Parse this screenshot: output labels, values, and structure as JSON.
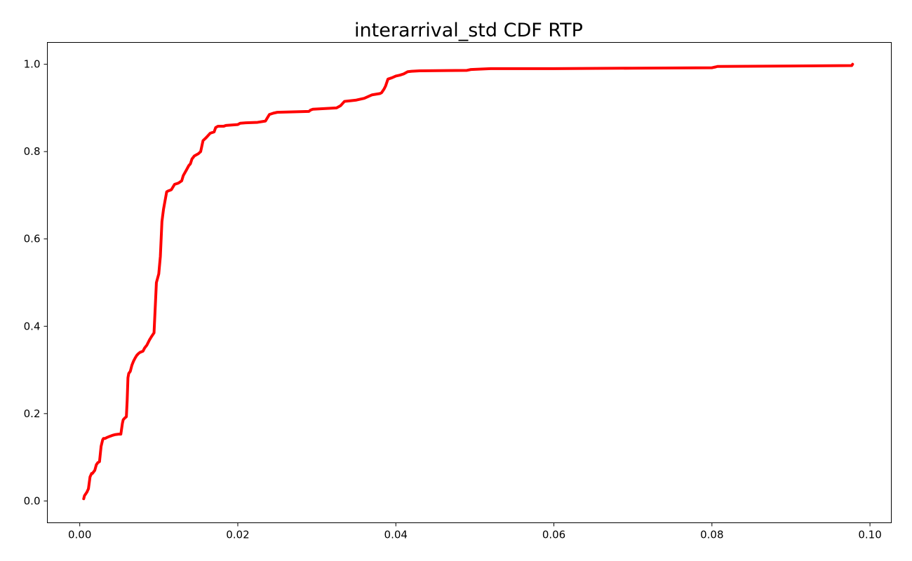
{
  "chart_data": {
    "type": "line",
    "title": "interarrival_std CDF RTP",
    "xlabel": "",
    "ylabel": "",
    "xlim": [
      -0.0041,
      0.1027
    ],
    "ylim": [
      -0.05,
      1.05
    ],
    "grid": false,
    "x_ticks": [
      0.0,
      0.02,
      0.04,
      0.06,
      0.08,
      0.1
    ],
    "x_tick_labels": [
      "0.00",
      "0.02",
      "0.04",
      "0.06",
      "0.08",
      "0.10"
    ],
    "y_ticks": [
      0.0,
      0.2,
      0.4,
      0.6,
      0.8,
      1.0
    ],
    "y_tick_labels": [
      "0.0",
      "0.2",
      "0.4",
      "0.6",
      "0.8",
      "1.0"
    ],
    "series": [
      {
        "color": "#ff0000",
        "x": [
          0.0005,
          0.0006,
          0.0009,
          0.0011,
          0.0013,
          0.0015,
          0.0016,
          0.0019,
          0.0021,
          0.0023,
          0.0025,
          0.0027,
          0.0029,
          0.003,
          0.0031,
          0.0032,
          0.0034,
          0.0038,
          0.0041,
          0.0045,
          0.0049,
          0.0052,
          0.0054,
          0.0055,
          0.0057,
          0.0059,
          0.006,
          0.0061,
          0.0062,
          0.0064,
          0.0066,
          0.0068,
          0.007,
          0.0072,
          0.0074,
          0.0076,
          0.008,
          0.0082,
          0.0085,
          0.0088,
          0.0091,
          0.0094,
          0.0097,
          0.01,
          0.0101,
          0.0102,
          0.0104,
          0.0106,
          0.0108,
          0.011,
          0.0112,
          0.0115,
          0.0116,
          0.012,
          0.0125,
          0.0129,
          0.0131,
          0.0135,
          0.0138,
          0.014,
          0.0142,
          0.0145,
          0.015,
          0.0153,
          0.0156,
          0.016,
          0.0165,
          0.017,
          0.0172,
          0.0175,
          0.0178,
          0.0182,
          0.0185,
          0.02,
          0.0203,
          0.021,
          0.0225,
          0.0235,
          0.024,
          0.0245,
          0.025,
          0.029,
          0.0292,
          0.0295,
          0.0325,
          0.033,
          0.0335,
          0.034,
          0.035,
          0.0355,
          0.036,
          0.0365,
          0.037,
          0.038,
          0.0382,
          0.0385,
          0.0387,
          0.039,
          0.0395,
          0.04,
          0.0405,
          0.041,
          0.0415,
          0.042,
          0.043,
          0.049,
          0.0495,
          0.052,
          0.06,
          0.07,
          0.08,
          0.0805,
          0.0807,
          0.09,
          0.0977,
          0.0978
        ],
        "y": [
          0.005,
          0.012,
          0.02,
          0.028,
          0.055,
          0.063,
          0.063,
          0.07,
          0.083,
          0.088,
          0.09,
          0.125,
          0.14,
          0.143,
          0.143,
          0.143,
          0.145,
          0.148,
          0.15,
          0.152,
          0.153,
          0.153,
          0.178,
          0.186,
          0.19,
          0.193,
          0.23,
          0.282,
          0.292,
          0.297,
          0.311,
          0.32,
          0.327,
          0.333,
          0.337,
          0.34,
          0.343,
          0.35,
          0.357,
          0.368,
          0.377,
          0.385,
          0.5,
          0.52,
          0.54,
          0.56,
          0.64,
          0.668,
          0.688,
          0.708,
          0.71,
          0.712,
          0.713,
          0.725,
          0.728,
          0.733,
          0.745,
          0.758,
          0.768,
          0.772,
          0.783,
          0.79,
          0.795,
          0.8,
          0.825,
          0.832,
          0.842,
          0.845,
          0.855,
          0.858,
          0.858,
          0.858,
          0.86,
          0.862,
          0.865,
          0.866,
          0.867,
          0.87,
          0.885,
          0.888,
          0.89,
          0.892,
          0.895,
          0.897,
          0.9,
          0.905,
          0.915,
          0.916,
          0.918,
          0.92,
          0.922,
          0.926,
          0.93,
          0.933,
          0.935,
          0.943,
          0.95,
          0.966,
          0.969,
          0.973,
          0.975,
          0.978,
          0.983,
          0.984,
          0.985,
          0.986,
          0.988,
          0.99,
          0.99,
          0.991,
          0.992,
          0.994,
          0.995,
          0.996,
          0.997,
          1.0
        ]
      }
    ]
  }
}
